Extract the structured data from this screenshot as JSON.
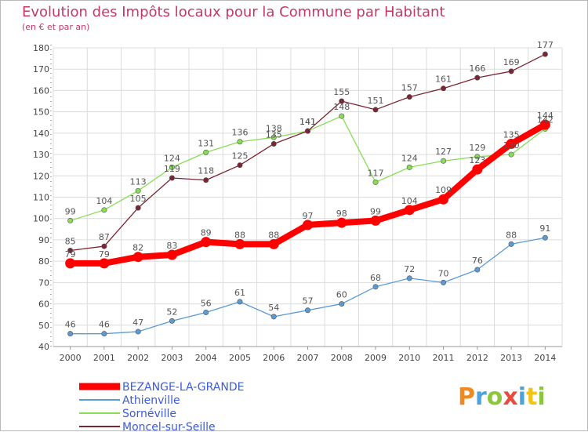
{
  "title": "Evolution des Impôts locaux pour la Commune par Habitant",
  "subtitle": "(en € et par an)",
  "logo": "Proxiti",
  "colors": {
    "title": "#c23a64",
    "grid": "#dcdcdc",
    "axis": "#cc3333",
    "bezange": "#ff0000",
    "athienville": "#5b9bd5",
    "sorneville": "#88dd55",
    "moncel": "#7a2532",
    "legend_text": "#3d5bd8"
  },
  "chart_data": {
    "type": "line",
    "title": "Evolution des Impôts locaux pour la Commune par Habitant",
    "ylabel": "(en € et par an)",
    "xlabel": "",
    "categories": [
      "2000",
      "2001",
      "2002",
      "2003",
      "2004",
      "2005",
      "2006",
      "2007",
      "2008",
      "2009",
      "2010",
      "2011",
      "2012",
      "2013",
      "2014"
    ],
    "ylim": [
      40,
      180
    ],
    "yticks": [
      40,
      50,
      60,
      70,
      80,
      90,
      100,
      110,
      120,
      130,
      140,
      150,
      160,
      170,
      180
    ],
    "grid": true,
    "legend": "bottom-left",
    "series": [
      {
        "name": "BEZANGE-LA-GRANDE",
        "key": "bezange",
        "values": [
          79,
          79,
          82,
          83,
          89,
          88,
          88,
          97,
          98,
          99,
          104,
          109,
          123,
          135,
          144
        ]
      },
      {
        "name": "Athienville",
        "key": "athienville",
        "values": [
          46,
          46,
          47,
          52,
          56,
          61,
          54,
          57,
          60,
          68,
          72,
          70,
          76,
          88,
          91
        ]
      },
      {
        "name": "Sornéville",
        "key": "sorneville",
        "values": [
          99,
          104,
          113,
          124,
          131,
          136,
          138,
          141,
          148,
          117,
          124,
          127,
          129,
          130,
          142
        ]
      },
      {
        "name": "Moncel-sur-Seille",
        "key": "moncel",
        "values": [
          85,
          87,
          105,
          119,
          118,
          125,
          135,
          141,
          155,
          151,
          157,
          161,
          166,
          169,
          177
        ]
      }
    ]
  }
}
